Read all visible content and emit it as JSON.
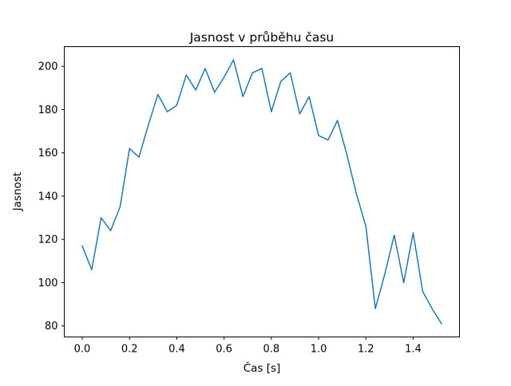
{
  "figure": {
    "background_color": "#ffffff",
    "text_color": "#000000",
    "spine_color": "#000000"
  },
  "chart_data": {
    "type": "line",
    "title": "Jasnost v průběhu času",
    "xlabel": "Čas [s]",
    "ylabel": "Jasnost",
    "x": [
      0.0,
      0.04,
      0.08,
      0.12,
      0.16,
      0.2,
      0.24,
      0.28,
      0.32,
      0.36,
      0.4,
      0.44,
      0.48,
      0.52,
      0.56,
      0.6,
      0.64,
      0.68,
      0.72,
      0.76,
      0.8,
      0.84,
      0.88,
      0.92,
      0.96,
      1.0,
      1.04,
      1.08,
      1.12,
      1.16,
      1.2,
      1.24,
      1.28,
      1.32,
      1.36,
      1.4,
      1.44,
      1.48,
      1.52
    ],
    "y": [
      117,
      106,
      130,
      124,
      135,
      162,
      158,
      173,
      187,
      179,
      182,
      196,
      189,
      199,
      188,
      195,
      203,
      186,
      197,
      199,
      179,
      193,
      197,
      178,
      186,
      168,
      166,
      175,
      159,
      141,
      126,
      88,
      104,
      122,
      100,
      123,
      96,
      88,
      81
    ],
    "xlim": [
      -0.076,
      1.596
    ],
    "ylim": [
      74.9,
      209.1
    ],
    "xticks": [
      0.0,
      0.2,
      0.4,
      0.6,
      0.8,
      1.0,
      1.2,
      1.4
    ],
    "xtick_labels": [
      "0.0",
      "0.2",
      "0.4",
      "0.6",
      "0.8",
      "1.0",
      "1.2",
      "1.4"
    ],
    "yticks": [
      80,
      100,
      120,
      140,
      160,
      180,
      200
    ],
    "ytick_labels": [
      "80",
      "100",
      "120",
      "140",
      "160",
      "180",
      "200"
    ],
    "line_color": "#1f77b4",
    "line_width": 1.5,
    "grid": false,
    "legend_position": "none"
  }
}
